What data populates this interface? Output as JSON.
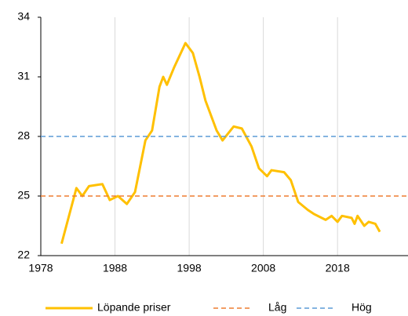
{
  "chart_data": {
    "type": "line",
    "xlim": [
      1978,
      2027.5
    ],
    "xticks": [
      1978,
      1988,
      1998,
      2008,
      2018
    ],
    "ylim": [
      22,
      34
    ],
    "yticks": [
      22,
      25,
      28,
      31,
      34
    ],
    "grid": true,
    "legend": "bottom",
    "series": [
      {
        "name": "Löpande priser",
        "color": "#ffc000",
        "dash": false,
        "x": [
          1980.8,
          1982.8,
          1983.6,
          1984.5,
          1986.3,
          1987.3,
          1988.4,
          1989.6,
          1990.7,
          1992.1,
          1993.0,
          1994.0,
          1994.5,
          1995.0,
          1996.0,
          1997.5,
          1998.5,
          1999.4,
          2000.2,
          2001.7,
          2002.5,
          2004.0,
          2005.1,
          2006.4,
          2007.4,
          2008.5,
          2009.1,
          2010.8,
          2011.7,
          2012.7,
          2014.0,
          2014.8,
          2016.4,
          2017.2,
          2018.0,
          2018.6,
          2019.9,
          2020.3,
          2020.7,
          2021.6,
          2022.2,
          2023.1,
          2023.7
        ],
        "values": [
          22.6,
          25.4,
          25.0,
          25.5,
          25.6,
          24.8,
          25.0,
          24.6,
          25.2,
          27.8,
          28.3,
          30.5,
          31.0,
          30.6,
          31.5,
          32.7,
          32.2,
          31.0,
          29.8,
          28.3,
          27.8,
          28.5,
          28.4,
          27.5,
          26.4,
          26.0,
          26.3,
          26.2,
          25.8,
          24.7,
          24.3,
          24.1,
          23.8,
          24.0,
          23.7,
          24.0,
          23.9,
          23.6,
          24.0,
          23.5,
          23.7,
          23.6,
          23.2
        ]
      },
      {
        "name": "Låg",
        "color": "#ed7d31",
        "dash": true,
        "x": [
          1978,
          2027.5
        ],
        "values": [
          25,
          25
        ]
      },
      {
        "name": "Hög",
        "color": "#5b9bd5",
        "dash": true,
        "x": [
          1978,
          2027.5
        ],
        "values": [
          28,
          28
        ]
      }
    ]
  }
}
